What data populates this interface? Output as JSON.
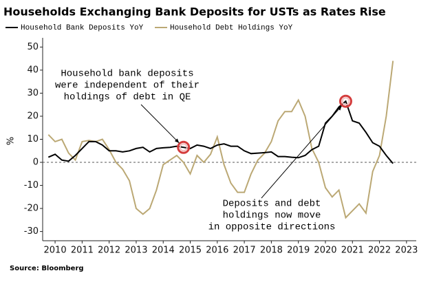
{
  "chart_data": {
    "type": "line",
    "title": "Households Exchanging Bank Deposits for USTs as Rates Rise",
    "y_label": "%",
    "source": "Source: Bloomberg",
    "x": [
      2009.75,
      2010,
      2010.25,
      2010.5,
      2010.75,
      2011,
      2011.25,
      2011.5,
      2011.75,
      2012,
      2012.25,
      2012.5,
      2012.75,
      2013,
      2013.25,
      2013.5,
      2013.75,
      2014,
      2014.25,
      2014.5,
      2014.75,
      2015,
      2015.25,
      2015.5,
      2015.75,
      2016,
      2016.25,
      2016.5,
      2016.75,
      2017,
      2017.25,
      2017.5,
      2017.75,
      2018,
      2018.25,
      2018.5,
      2018.75,
      2019,
      2019.25,
      2019.5,
      2019.75,
      2020,
      2020.25,
      2020.5,
      2020.75,
      2021,
      2021.25,
      2021.5,
      2021.75,
      2022,
      2022.25,
      2022.5
    ],
    "series": [
      {
        "name": "Household Bank Deposits YoY",
        "color": "#000000",
        "values": [
          2.2,
          3.5,
          1,
          0.5,
          3,
          6,
          9,
          9,
          7.5,
          5,
          5,
          4.5,
          5,
          6,
          6.5,
          4.5,
          6,
          6.3,
          6.5,
          7,
          6.5,
          6,
          7.5,
          7,
          6,
          7.5,
          8,
          7,
          7,
          5,
          3.8,
          4,
          4.2,
          4.5,
          2.5,
          2.5,
          2.2,
          2,
          3,
          5.5,
          7,
          17,
          20,
          24,
          26.5,
          18,
          17,
          13,
          8.5,
          7,
          3,
          -0.5
        ]
      },
      {
        "name": "Household Debt Holdings YoY",
        "color": "#bba874",
        "values": [
          12,
          9,
          10,
          4,
          1,
          9,
          9.5,
          9,
          10,
          5.5,
          0,
          -3,
          -8,
          -20,
          -22.5,
          -20,
          -12,
          -1,
          1,
          3,
          0,
          -5,
          3,
          0,
          3.5,
          11,
          -1,
          -9,
          -13,
          -13,
          -5,
          1,
          4,
          9,
          18,
          22,
          22,
          27,
          20,
          6,
          0,
          -11,
          -15,
          -12,
          -24,
          -21,
          -18,
          -22,
          -4,
          3,
          20,
          44
        ]
      }
    ],
    "xlim": [
      2009.54,
      2023.36
    ],
    "ylim": [
      -34,
      54
    ],
    "xticks": [
      2010,
      2011,
      2012,
      2013,
      2014,
      2015,
      2016,
      2017,
      2018,
      2019,
      2020,
      2021,
      2022,
      2023
    ],
    "yticks": [
      -30,
      -20,
      -10,
      0,
      10,
      20,
      30,
      40,
      50
    ],
    "annotations": [
      {
        "lines": [
          "Household bank deposits",
          "were independent of their",
          "holdings of debt in QE"
        ]
      },
      {
        "lines": [
          "Deposits and debt",
          "holdings now move",
          "in opposite directions"
        ]
      }
    ]
  }
}
